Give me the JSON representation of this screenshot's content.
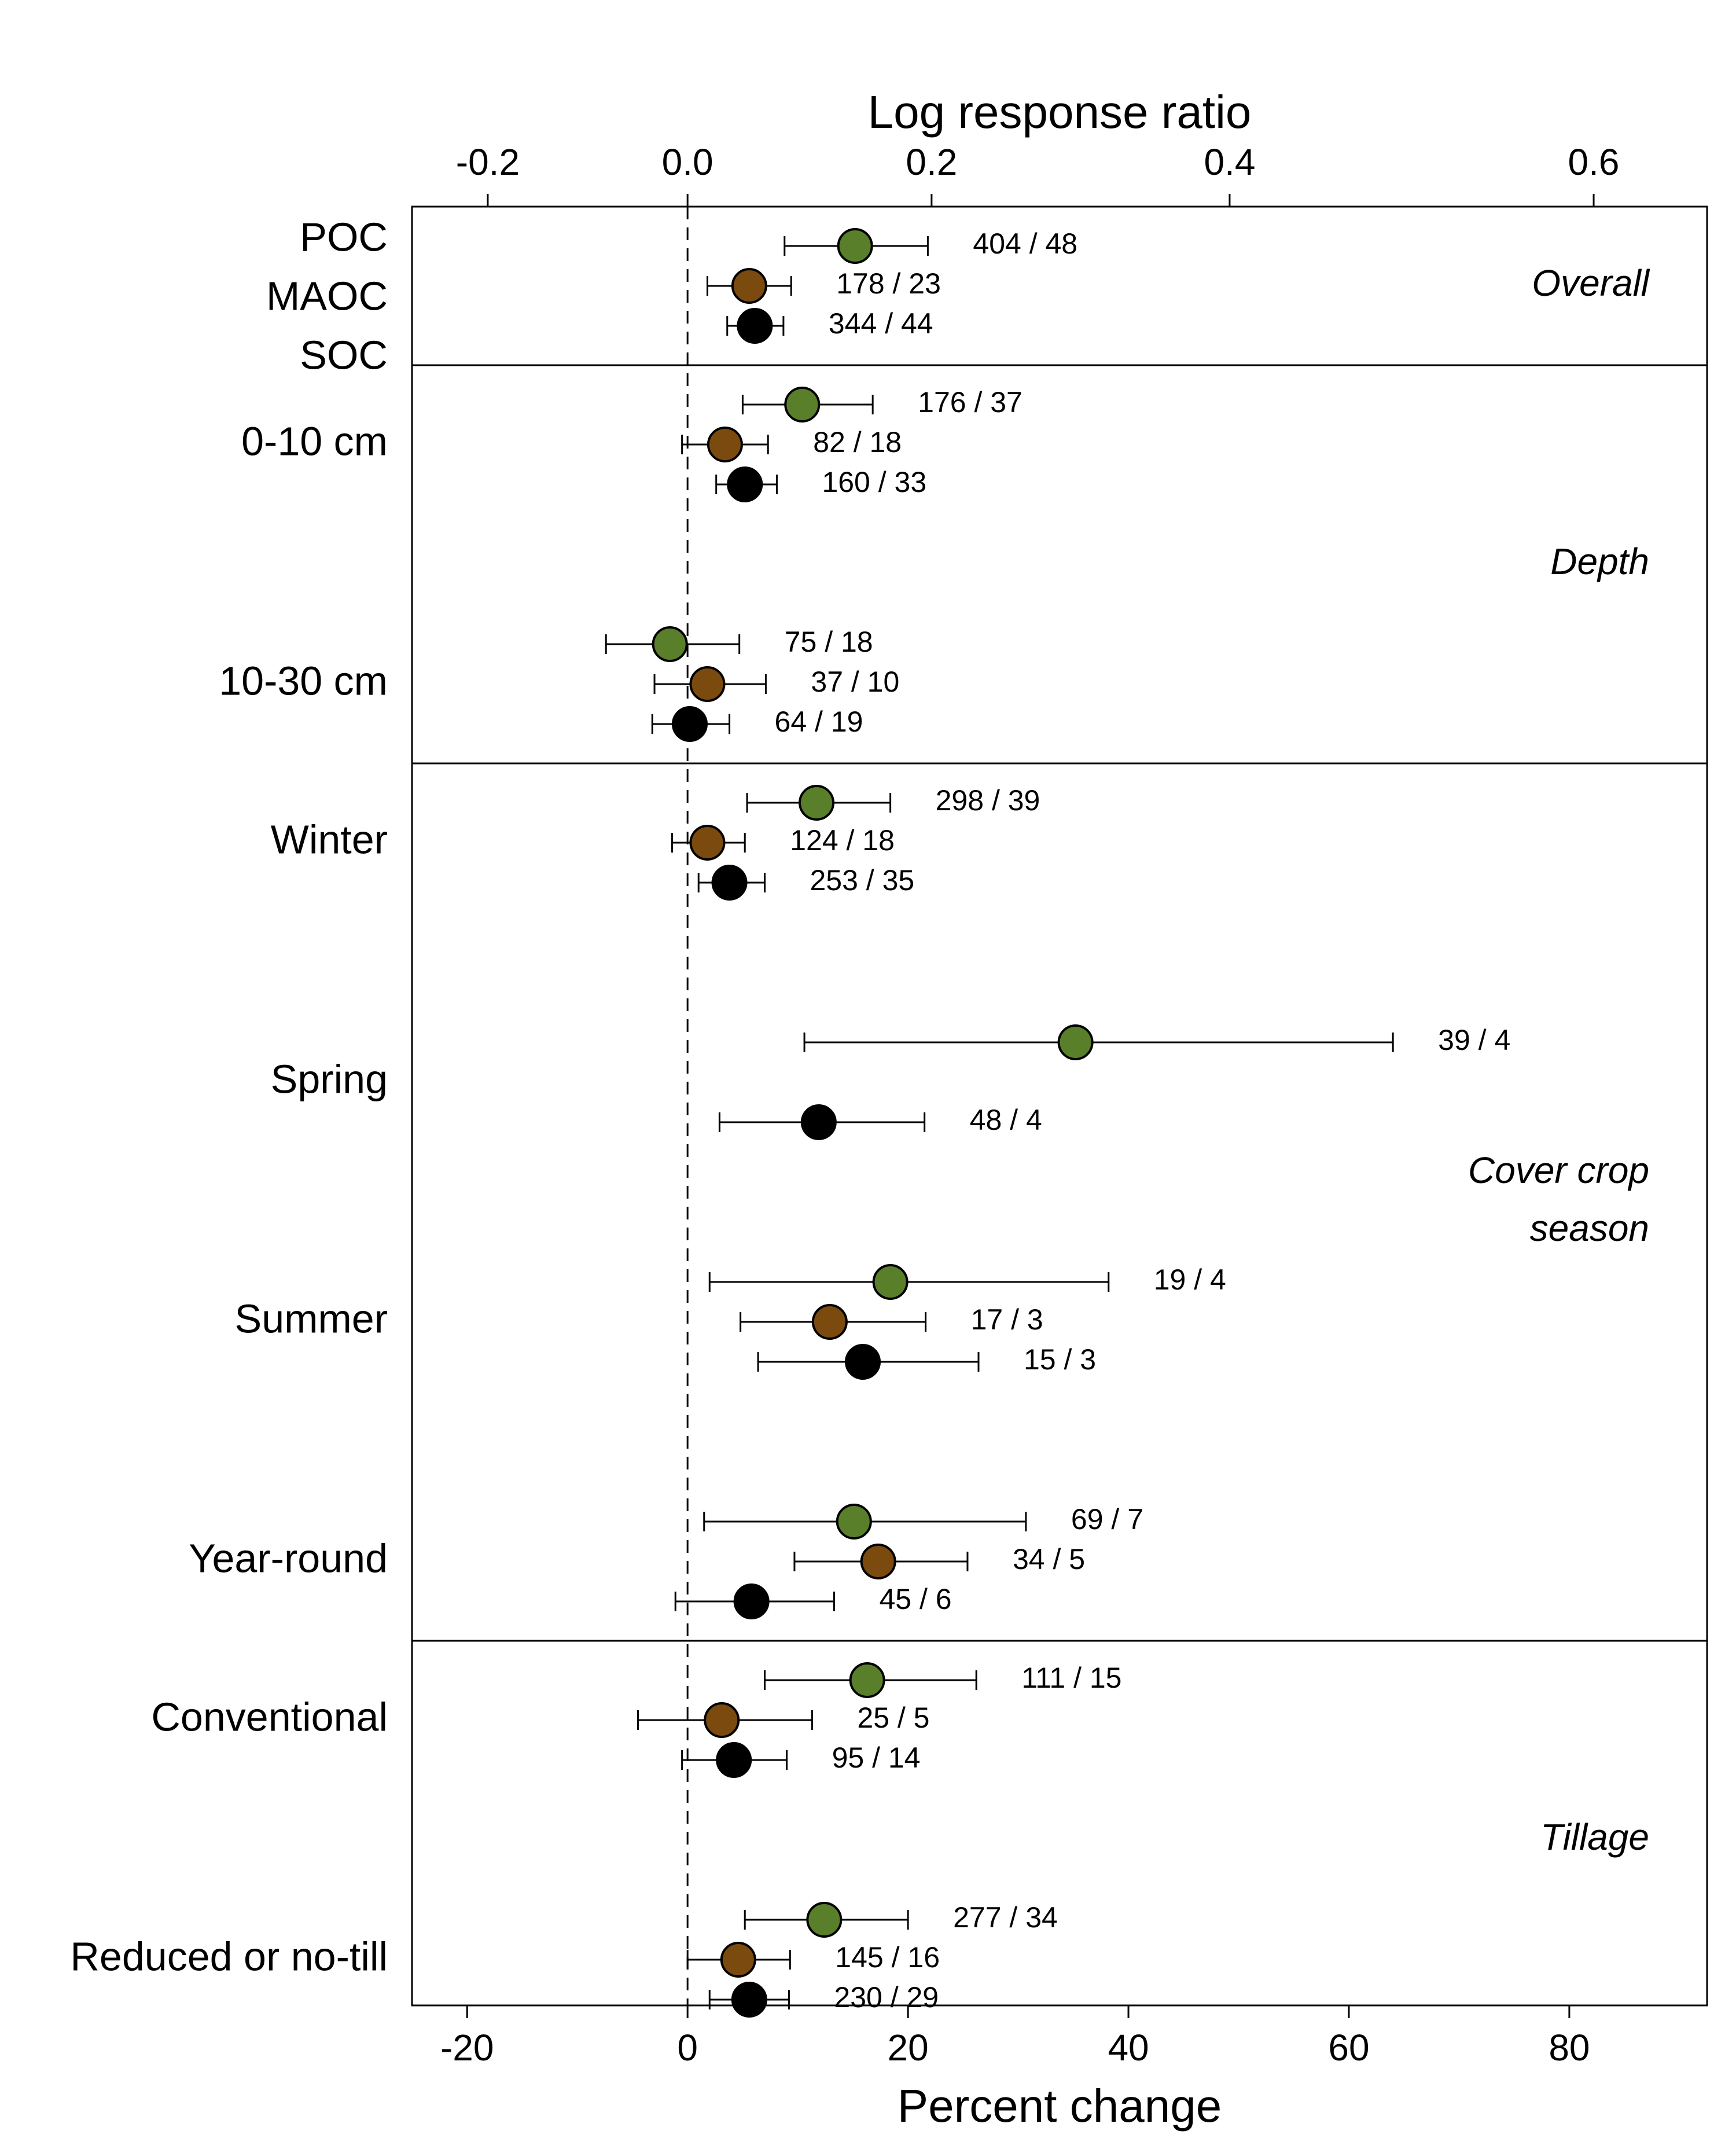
{
  "chart_data": {
    "type": "forest",
    "top_axis": {
      "label": "Log response ratio",
      "ticks": [
        -0.2,
        0.0,
        0.2,
        0.4,
        0.6
      ],
      "tick_labels": [
        "-0.2",
        "0.0",
        "0.2",
        "0.4",
        "0.6"
      ]
    },
    "bottom_axis": {
      "label": "Percent change",
      "ticks": [
        -20,
        0,
        20,
        40,
        60,
        80
      ],
      "tick_labels": [
        "-20",
        "0",
        "20",
        "40",
        "60",
        "80"
      ],
      "range": [
        -20,
        90
      ]
    },
    "reference_line": 0,
    "series": [
      {
        "id": "POC",
        "color": "#5a7f2a"
      },
      {
        "id": "MAOC",
        "color": "#7b4a0f"
      },
      {
        "id": "SOC",
        "color": "#000000"
      }
    ],
    "overall_row_labels": [
      "POC",
      "MAOC",
      "SOC"
    ],
    "panels": [
      {
        "label": "Overall",
        "groups": [
          {
            "label": "",
            "points": [
              {
                "series": "POC",
                "estimate": 15.2,
                "lower": 8.8,
                "upper": 21.8,
                "n_label": "404 / 48"
              },
              {
                "series": "MAOC",
                "estimate": 5.6,
                "lower": 1.8,
                "upper": 9.4,
                "n_label": "178 / 23"
              },
              {
                "series": "SOC",
                "estimate": 6.1,
                "lower": 3.6,
                "upper": 8.7,
                "n_label": "344 / 44"
              }
            ]
          }
        ]
      },
      {
        "label": "Depth",
        "groups": [
          {
            "label": "0-10 cm",
            "points": [
              {
                "series": "POC",
                "estimate": 10.4,
                "lower": 5.0,
                "upper": 16.8,
                "n_label": "176 / 37"
              },
              {
                "series": "MAOC",
                "estimate": 3.4,
                "lower": -0.5,
                "upper": 7.3,
                "n_label": "82 / 18"
              },
              {
                "series": "SOC",
                "estimate": 5.2,
                "lower": 2.6,
                "upper": 8.1,
                "n_label": "160 / 33"
              }
            ]
          },
          {
            "label": "10-30 cm",
            "points": [
              {
                "series": "POC",
                "estimate": -1.6,
                "lower": -7.4,
                "upper": 4.7,
                "n_label": "75 / 18"
              },
              {
                "series": "MAOC",
                "estimate": 1.8,
                "lower": -3.0,
                "upper": 7.1,
                "n_label": "37 / 10"
              },
              {
                "series": "SOC",
                "estimate": 0.2,
                "lower": -3.2,
                "upper": 3.8,
                "n_label": "64 / 19"
              }
            ]
          }
        ]
      },
      {
        "label": "Cover crop season",
        "label_lines": [
          "Cover crop",
          "season"
        ],
        "groups": [
          {
            "label": "Winter",
            "points": [
              {
                "series": "POC",
                "estimate": 11.7,
                "lower": 5.4,
                "upper": 18.4,
                "n_label": "298 / 39"
              },
              {
                "series": "MAOC",
                "estimate": 1.8,
                "lower": -1.4,
                "upper": 5.2,
                "n_label": "124 / 18"
              },
              {
                "series": "SOC",
                "estimate": 3.8,
                "lower": 1.0,
                "upper": 7.0,
                "n_label": "253 / 35"
              }
            ]
          },
          {
            "label": "Spring",
            "points": [
              {
                "series": "POC",
                "estimate": 35.2,
                "lower": 10.6,
                "upper": 64.0,
                "n_label": "39 / 4"
              },
              {
                "series": "MAOC",
                "estimate": null,
                "lower": null,
                "upper": null,
                "n_label": ""
              },
              {
                "series": "SOC",
                "estimate": 11.9,
                "lower": 2.9,
                "upper": 21.5,
                "n_label": "48 / 4"
              }
            ]
          },
          {
            "label": "Summer",
            "points": [
              {
                "series": "POC",
                "estimate": 18.4,
                "lower": 2.0,
                "upper": 38.2,
                "n_label": "19 / 4"
              },
              {
                "series": "MAOC",
                "estimate": 12.9,
                "lower": 4.8,
                "upper": 21.6,
                "n_label": "17 / 3"
              },
              {
                "series": "SOC",
                "estimate": 15.9,
                "lower": 6.4,
                "upper": 26.4,
                "n_label": "15 / 3"
              }
            ]
          },
          {
            "label": "Year-round",
            "points": [
              {
                "series": "POC",
                "estimate": 15.1,
                "lower": 1.5,
                "upper": 30.7,
                "n_label": "69 / 7"
              },
              {
                "series": "MAOC",
                "estimate": 17.3,
                "lower": 9.7,
                "upper": 25.4,
                "n_label": "34 / 5"
              },
              {
                "series": "SOC",
                "estimate": 5.8,
                "lower": -1.1,
                "upper": 13.3,
                "n_label": "45 / 6"
              }
            ]
          }
        ]
      },
      {
        "label": "Tillage",
        "groups": [
          {
            "label": "Conventional",
            "points": [
              {
                "series": "POC",
                "estimate": 16.3,
                "lower": 7.0,
                "upper": 26.2,
                "n_label": "111 / 15"
              },
              {
                "series": "MAOC",
                "estimate": 3.1,
                "lower": -4.5,
                "upper": 11.3,
                "n_label": "25 / 5"
              },
              {
                "series": "SOC",
                "estimate": 4.2,
                "lower": -0.5,
                "upper": 9.0,
                "n_label": "95 / 14"
              }
            ]
          },
          {
            "label": "Reduced or no-till",
            "points": [
              {
                "series": "POC",
                "estimate": 12.4,
                "lower": 5.2,
                "upper": 20.0,
                "n_label": "277 / 34"
              },
              {
                "series": "MAOC",
                "estimate": 4.6,
                "lower": 0.0,
                "upper": 9.3,
                "n_label": "145 / 16"
              },
              {
                "series": "SOC",
                "estimate": 5.6,
                "lower": 2.0,
                "upper": 9.2,
                "n_label": "230 / 29"
              }
            ]
          }
        ]
      }
    ]
  }
}
